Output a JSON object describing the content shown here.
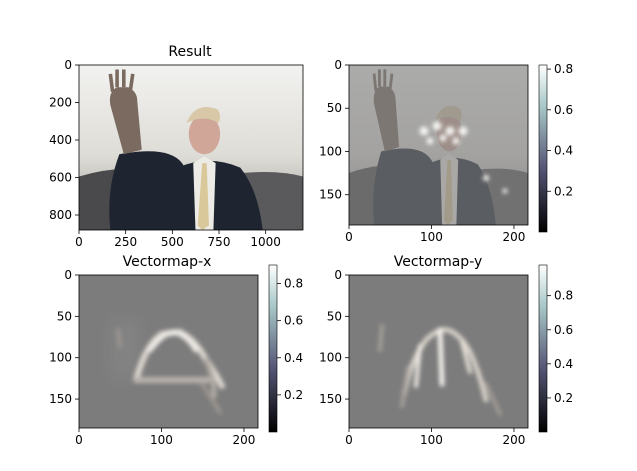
{
  "chart_data": [
    {
      "type": "heatmap",
      "title": "Result",
      "xlim": [
        0,
        1200
      ],
      "ylim": [
        880,
        0
      ],
      "xticks": [
        0,
        250,
        500,
        750,
        1000
      ],
      "yticks": [
        0,
        200,
        400,
        600,
        800
      ],
      "content": "photograph",
      "colorbar": null
    },
    {
      "type": "heatmap",
      "title": "",
      "xlim": [
        0,
        217
      ],
      "ylim": [
        185,
        0
      ],
      "xticks": [
        0,
        100,
        200
      ],
      "yticks": [
        0,
        50,
        100,
        150
      ],
      "content": "heatmap overlay on photograph",
      "colormap": "bone",
      "colorbar": {
        "ticks": [
          0.2,
          0.4,
          0.6,
          0.8
        ],
        "range": [
          0.0,
          0.82
        ]
      }
    },
    {
      "type": "heatmap",
      "title": "Vectormap-x",
      "xlim": [
        0,
        217
      ],
      "ylim": [
        185,
        0
      ],
      "xticks": [
        0,
        100,
        200
      ],
      "yticks": [
        0,
        50,
        100,
        150
      ],
      "colormap": "bone",
      "colorbar": {
        "ticks": [
          0.2,
          0.4,
          0.6,
          0.8
        ],
        "range": [
          0.0,
          0.9
        ]
      }
    },
    {
      "type": "heatmap",
      "title": "Vectormap-y",
      "xlim": [
        0,
        217
      ],
      "ylim": [
        185,
        0
      ],
      "xticks": [
        0,
        100,
        200
      ],
      "yticks": [
        0,
        50,
        100,
        150
      ],
      "colormap": "bone",
      "colorbar": {
        "ticks": [
          0.2,
          0.4,
          0.6,
          0.8
        ],
        "range": [
          0.0,
          0.98
        ]
      }
    }
  ]
}
